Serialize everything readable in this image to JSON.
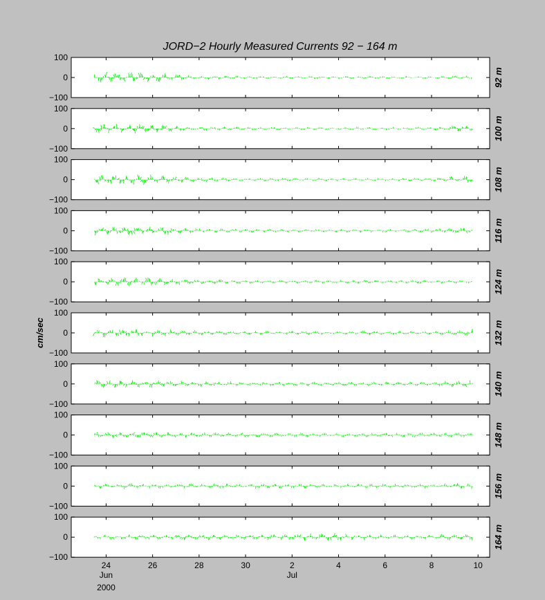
{
  "chart_data": {
    "type": "line",
    "title": "JORD−2  Hourly Measured Currents  92 − 164 m",
    "ylabel": "cm/sec",
    "ylim": [
      -100,
      100
    ],
    "y_ticks": [
      "100",
      "0",
      "−100"
    ],
    "x_range_days": [
      22.5,
      40.5
    ],
    "x_ticks": [
      {
        "day": 24,
        "label": "24",
        "sub": "Jun"
      },
      {
        "day": 26,
        "label": "26",
        "sub": ""
      },
      {
        "day": 28,
        "label": "28",
        "sub": ""
      },
      {
        "day": 30,
        "label": "30",
        "sub": ""
      },
      {
        "day": 32,
        "label": "2",
        "sub": "Jul"
      },
      {
        "day": 34,
        "label": "4",
        "sub": ""
      },
      {
        "day": 36,
        "label": "6",
        "sub": ""
      },
      {
        "day": 38,
        "label": "8",
        "sub": ""
      },
      {
        "day": 40,
        "label": "10",
        "sub": ""
      }
    ],
    "x_year": "2000",
    "series_color": "#00ee00",
    "data_span_days": [
      23.5,
      39.75
    ],
    "series": [
      {
        "depth_label": "92 m",
        "envelope": [
          [
            23.5,
            28
          ],
          [
            25,
            26
          ],
          [
            26.5,
            22
          ],
          [
            27.5,
            12
          ],
          [
            30,
            8
          ],
          [
            36,
            7
          ],
          [
            38,
            8
          ],
          [
            39.75,
            9
          ]
        ]
      },
      {
        "depth_label": "100 m",
        "envelope": [
          [
            23.5,
            24
          ],
          [
            25,
            24
          ],
          [
            26.5,
            20
          ],
          [
            27.5,
            12
          ],
          [
            30,
            8
          ],
          [
            36,
            8
          ],
          [
            38,
            9
          ],
          [
            39.3,
            18
          ],
          [
            39.75,
            10
          ]
        ]
      },
      {
        "depth_label": "108 m",
        "envelope": [
          [
            23.5,
            24
          ],
          [
            25,
            26
          ],
          [
            26.5,
            24
          ],
          [
            27.5,
            14
          ],
          [
            30,
            9
          ],
          [
            36,
            8
          ],
          [
            38,
            10
          ],
          [
            39.5,
            22
          ],
          [
            39.75,
            10
          ]
        ]
      },
      {
        "depth_label": "116 m",
        "envelope": [
          [
            23.5,
            24
          ],
          [
            25,
            24
          ],
          [
            26.5,
            22
          ],
          [
            27.5,
            14
          ],
          [
            30,
            9
          ],
          [
            36,
            9
          ],
          [
            38,
            11
          ],
          [
            39.5,
            18
          ],
          [
            39.75,
            10
          ]
        ]
      },
      {
        "depth_label": "124 m",
        "envelope": [
          [
            23.5,
            22
          ],
          [
            25,
            22
          ],
          [
            26.5,
            20
          ],
          [
            27.5,
            14
          ],
          [
            30,
            10
          ],
          [
            36,
            9
          ],
          [
            38,
            10
          ],
          [
            39.75,
            9
          ]
        ]
      },
      {
        "depth_label": "132 m",
        "envelope": [
          [
            23.5,
            22
          ],
          [
            25,
            20
          ],
          [
            26.5,
            18
          ],
          [
            27.5,
            14
          ],
          [
            30,
            10
          ],
          [
            36,
            10
          ],
          [
            38,
            10
          ],
          [
            39.6,
            18
          ],
          [
            39.75,
            20
          ]
        ]
      },
      {
        "depth_label": "140 m",
        "envelope": [
          [
            23.5,
            20
          ],
          [
            25,
            20
          ],
          [
            26.5,
            18
          ],
          [
            27.5,
            14
          ],
          [
            30,
            12
          ],
          [
            36,
            11
          ],
          [
            38,
            12
          ],
          [
            39.6,
            18
          ],
          [
            39.75,
            20
          ]
        ]
      },
      {
        "depth_label": "148 m",
        "envelope": [
          [
            23.5,
            18
          ],
          [
            25,
            18
          ],
          [
            26.5,
            16
          ],
          [
            27.5,
            14
          ],
          [
            30,
            12
          ],
          [
            36,
            11
          ],
          [
            38,
            12
          ],
          [
            39.75,
            14
          ]
        ]
      },
      {
        "depth_label": "156 m",
        "envelope": [
          [
            23.5,
            14
          ],
          [
            25,
            14
          ],
          [
            26.5,
            14
          ],
          [
            27.5,
            13
          ],
          [
            30,
            13
          ],
          [
            36,
            12
          ],
          [
            38,
            13
          ],
          [
            39.6,
            16
          ],
          [
            39.75,
            16
          ]
        ]
      },
      {
        "depth_label": "164 m",
        "envelope": [
          [
            23.5,
            12
          ],
          [
            25,
            13
          ],
          [
            26.5,
            14
          ],
          [
            27.5,
            14
          ],
          [
            30,
            14
          ],
          [
            33.5,
            20
          ],
          [
            36,
            13
          ],
          [
            38,
            13
          ],
          [
            39.6,
            18
          ],
          [
            39.75,
            16
          ]
        ]
      }
    ]
  }
}
